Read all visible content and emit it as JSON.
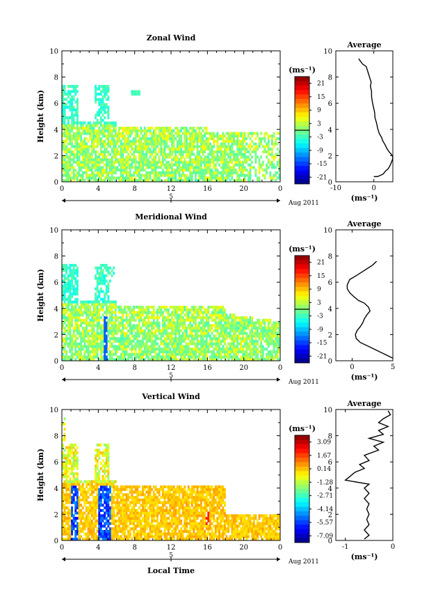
{
  "chart_data": [
    {
      "type": "heatmap",
      "title": "Zonal Wind",
      "ylabel": "Height (km)",
      "xlabel": "",
      "x_ticks": [
        "0",
        "4",
        "8",
        "12",
        "16",
        "20",
        "0"
      ],
      "y_ticks": [
        "0",
        "2",
        "4",
        "6",
        "8",
        "10"
      ],
      "date_axis": {
        "label": "5",
        "right_text": "Aug 2011"
      },
      "ylim": [
        0,
        10
      ],
      "xlim": [
        0,
        24
      ],
      "colorbar": {
        "unit": "(ms⁻¹)",
        "ticks": [
          "21",
          "15",
          "9",
          "3",
          "-3",
          "-9",
          "-15",
          "-21"
        ],
        "range": [
          -24,
          24
        ],
        "contour_at": 0
      },
      "profile": {
        "title": "Average",
        "xlabel": "(ms⁻¹)",
        "x_ticks": [
          "-10",
          "0"
        ],
        "x_tick_values": [
          -10,
          0
        ],
        "xlim": [
          -10,
          5
        ],
        "y_ticks": [
          "0",
          "2",
          "4",
          "6",
          "8",
          "10"
        ],
        "points": [
          [
            0.0,
            0.4
          ],
          [
            1.0,
            0.4
          ],
          [
            1.8,
            0.5
          ],
          [
            2.5,
            0.6
          ],
          [
            3.0,
            0.8
          ],
          [
            3.8,
            1.0
          ],
          [
            4.2,
            1.2
          ],
          [
            4.5,
            1.4
          ],
          [
            4.9,
            1.7
          ],
          [
            5.0,
            1.9
          ],
          [
            4.6,
            2.1
          ],
          [
            4.0,
            2.3
          ],
          [
            3.5,
            2.5
          ],
          [
            3.0,
            2.8
          ],
          [
            2.4,
            3.1
          ],
          [
            2.0,
            3.4
          ],
          [
            1.4,
            3.7
          ],
          [
            1.0,
            4.1
          ],
          [
            0.7,
            4.5
          ],
          [
            0.3,
            4.9
          ],
          [
            0.2,
            5.3
          ],
          [
            -0.1,
            5.7
          ],
          [
            -0.4,
            6.1
          ],
          [
            -0.6,
            6.5
          ],
          [
            -0.6,
            6.9
          ],
          [
            -0.9,
            7.3
          ],
          [
            -0.7,
            7.6
          ],
          [
            -2.0,
            8.8
          ],
          [
            -3.0,
            9.0
          ],
          [
            -4.0,
            9.4
          ]
        ]
      }
    },
    {
      "type": "heatmap",
      "title": "Meridional Wind",
      "ylabel": "Height (km)",
      "xlabel": "",
      "x_ticks": [
        "0",
        "4",
        "8",
        "12",
        "16",
        "20",
        "0"
      ],
      "y_ticks": [
        "0",
        "2",
        "4",
        "6",
        "8",
        "10"
      ],
      "date_axis": {
        "label": "5",
        "right_text": "Aug 2011"
      },
      "ylim": [
        0,
        10
      ],
      "xlim": [
        0,
        24
      ],
      "colorbar": {
        "unit": "(ms⁻¹)",
        "ticks": [
          "21",
          "15",
          "9",
          "3",
          "-3",
          "-9",
          "-15",
          "-21"
        ],
        "range": [
          -24,
          24
        ],
        "contour_at": 0
      },
      "profile": {
        "title": "Average",
        "xlabel": "(ms⁻¹)",
        "x_ticks": [
          "0",
          "5"
        ],
        "x_tick_values": [
          0,
          5
        ],
        "xlim": [
          -2,
          5
        ],
        "y_ticks": [
          "0",
          "2",
          "4",
          "6",
          "8",
          "10"
        ],
        "points": [
          [
            5.0,
            0.2
          ],
          [
            4.0,
            0.5
          ],
          [
            3.0,
            0.8
          ],
          [
            2.0,
            1.1
          ],
          [
            1.0,
            1.4
          ],
          [
            0.5,
            1.7
          ],
          [
            0.4,
            2.0
          ],
          [
            0.6,
            2.3
          ],
          [
            1.0,
            2.6
          ],
          [
            1.3,
            2.9
          ],
          [
            1.5,
            3.2
          ],
          [
            1.8,
            3.5
          ],
          [
            2.2,
            3.8
          ],
          [
            2.0,
            4.1
          ],
          [
            1.5,
            4.4
          ],
          [
            0.8,
            4.6
          ],
          [
            0.2,
            4.9
          ],
          [
            -0.3,
            5.2
          ],
          [
            -0.6,
            5.5
          ],
          [
            -0.6,
            5.8
          ],
          [
            -0.3,
            6.2
          ],
          [
            0.5,
            6.5
          ],
          [
            1.5,
            6.9
          ],
          [
            2.5,
            7.3
          ],
          [
            3.0,
            7.6
          ]
        ]
      }
    },
    {
      "type": "heatmap",
      "title": "Vertical Wind",
      "ylabel": "Height (km)",
      "xlabel": "Local Time",
      "x_ticks": [
        "0",
        "4",
        "8",
        "12",
        "16",
        "20",
        "0"
      ],
      "y_ticks": [
        "0",
        "2",
        "4",
        "6",
        "8",
        "10"
      ],
      "date_axis": {
        "label": "5",
        "right_text": "Aug 2011"
      },
      "ylim": [
        0,
        10
      ],
      "xlim": [
        0,
        24
      ],
      "colorbar": {
        "unit": "(ms⁻¹)",
        "ticks": [
          "3.09",
          "1.67",
          "0.14",
          "-1.28",
          "-2.71",
          "-4.14",
          "-5.57",
          "-7.09"
        ],
        "range": [
          -8,
          4
        ],
        "contour_at": null
      },
      "profile": {
        "title": "Average",
        "xlabel": "(ms⁻¹)",
        "x_ticks": [
          "-1",
          "0"
        ],
        "x_tick_values": [
          -1,
          0
        ],
        "xlim": [
          -1.2,
          0
        ],
        "y_ticks": [
          "0",
          "2",
          "4",
          "6",
          "8",
          "10"
        ],
        "points": [
          [
            -0.6,
            0.1
          ],
          [
            -0.5,
            0.4
          ],
          [
            -0.6,
            0.8
          ],
          [
            -0.5,
            1.2
          ],
          [
            -0.55,
            1.6
          ],
          [
            -0.5,
            2.0
          ],
          [
            -0.55,
            2.4
          ],
          [
            -0.5,
            2.8
          ],
          [
            -0.6,
            3.2
          ],
          [
            -0.5,
            3.6
          ],
          [
            -0.6,
            4.0
          ],
          [
            -0.5,
            4.3
          ],
          [
            -1.0,
            4.6
          ],
          [
            -0.9,
            4.9
          ],
          [
            -0.8,
            5.2
          ],
          [
            -0.6,
            5.5
          ],
          [
            -0.7,
            5.8
          ],
          [
            -0.5,
            6.1
          ],
          [
            -0.6,
            6.5
          ],
          [
            -0.3,
            6.9
          ],
          [
            -0.4,
            7.2
          ],
          [
            -0.2,
            7.5
          ],
          [
            -0.5,
            7.8
          ],
          [
            -0.2,
            8.1
          ],
          [
            -0.3,
            8.4
          ],
          [
            -0.1,
            8.7
          ],
          [
            -0.3,
            9.0
          ],
          [
            -0.2,
            9.3
          ],
          [
            -0.05,
            9.6
          ],
          [
            -0.1,
            9.9
          ]
        ]
      }
    }
  ]
}
